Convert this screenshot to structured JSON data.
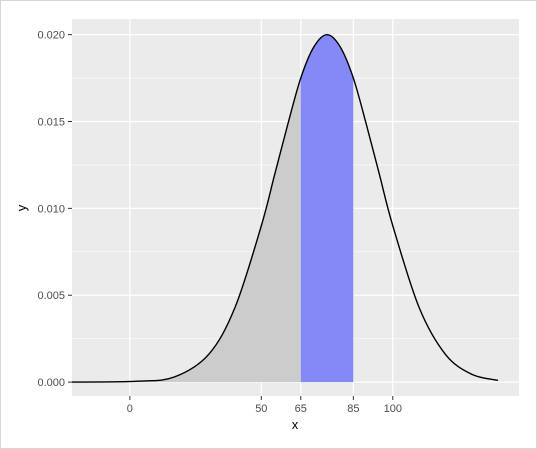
{
  "chart_data": {
    "type": "area",
    "title": "",
    "xlabel": "x",
    "ylabel": "y",
    "xlim": [
      -22,
      148
    ],
    "ylim": [
      -0.0008,
      0.0209
    ],
    "x_ticks": [
      0,
      50,
      65,
      85,
      100
    ],
    "x_tick_labels": [
      "0",
      "50",
      "65",
      "85",
      "100"
    ],
    "y_ticks": [
      0,
      0.005,
      0.01,
      0.015,
      0.02
    ],
    "y_tick_labels": [
      "0.000",
      "0.005",
      "0.010",
      "0.015",
      "0.020"
    ],
    "y_minor_ticks": [
      0.0025,
      0.0075,
      0.0125,
      0.0175
    ],
    "grid": true,
    "legend": "none",
    "series": [
      {
        "type": "line",
        "x": [
          -22,
          3,
          17,
          30,
          40,
          50,
          55,
          60,
          65,
          70,
          75,
          80,
          85,
          90,
          95,
          100,
          110,
          120,
          130,
          140
        ],
        "y": [
          0,
          5e-05,
          0.0003,
          0.0016,
          0.0043,
          0.009,
          0.0119,
          0.0148,
          0.0175,
          0.0193,
          0.02,
          0.0193,
          0.0175,
          0.0148,
          0.0119,
          0.009,
          0.0043,
          0.0016,
          0.00045,
          0.0001
        ]
      }
    ],
    "shaded_regions": [
      {
        "from": -22,
        "to": 65,
        "color": "#cccccc"
      },
      {
        "from": 65,
        "to": 85,
        "color": "#8588f7"
      }
    ],
    "colors": {
      "panel": "#ebebeb",
      "grid_major": "#ffffff",
      "line": "#000000"
    }
  }
}
